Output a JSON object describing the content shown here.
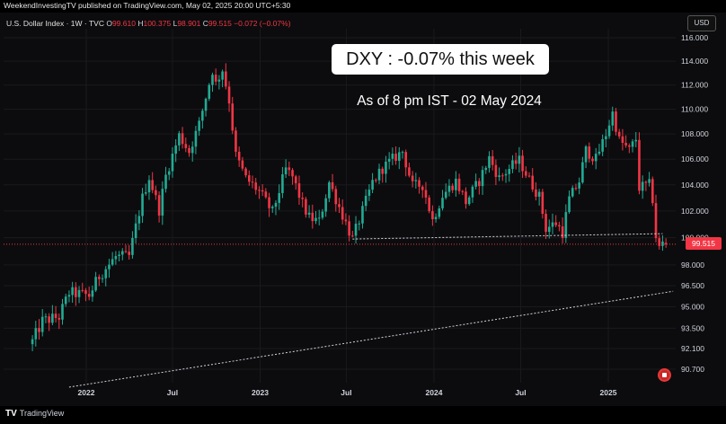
{
  "header": {
    "publisher": "WeekendInvestingTV published on TradingView.com, May 02, 2025 20:00 UTC+5:30"
  },
  "legend": {
    "symbol": "U.S. Dollar Index · 1W · TVC",
    "o_label": "O",
    "o": "99.610",
    "h_label": "H",
    "h": "100.375",
    "l_label": "L",
    "l": "98.901",
    "c_label": "C",
    "c": "99.515",
    "change": "−0.072 (−0.07%)"
  },
  "currency": "USD",
  "annotations": {
    "callout": "DXY : -0.07% this week",
    "subtitle": "As of 8 pm IST - 02 May 2024"
  },
  "price_tag": "99.515",
  "footer": {
    "logo": "TradingView"
  },
  "colors": {
    "up": "#22ab94",
    "down": "#f23645",
    "background": "#0c0c0e",
    "text": "#d1d4dc"
  },
  "chart_data": {
    "type": "candlestick",
    "interval": "1W",
    "y_ticks": [
      "116.000",
      "114.000",
      "112.000",
      "110.000",
      "108.000",
      "106.000",
      "104.000",
      "102.000",
      "100.000",
      "98.000",
      "96.500",
      "95.000",
      "93.500",
      "92.100",
      "90.700"
    ],
    "x_ticks": [
      "2022",
      "Jul",
      "2023",
      "Jul",
      "2024",
      "Jul",
      "2025"
    ],
    "ylim": [
      89.5,
      116.3
    ],
    "y_scale": "log",
    "last_price": 99.515,
    "support_line": {
      "from": [
        "2023-07-14",
        99.9
      ],
      "to": [
        "2025-04-25",
        100.3
      ]
    },
    "trend_line": {
      "from": [
        "2021-11-26",
        89.5
      ],
      "to": [
        "2025-05-02",
        96.1
      ]
    },
    "close_series": [
      {
        "date": "2021-09-10",
        "close": 92.6
      },
      {
        "date": "2021-10-01",
        "close": 94.0
      },
      {
        "date": "2021-11-05",
        "close": 94.3
      },
      {
        "date": "2021-11-26",
        "close": 96.0
      },
      {
        "date": "2022-01-07",
        "close": 95.8
      },
      {
        "date": "2022-01-28",
        "close": 97.2
      },
      {
        "date": "2022-03-04",
        "close": 98.6
      },
      {
        "date": "2022-04-01",
        "close": 98.6
      },
      {
        "date": "2022-04-29",
        "close": 103.0
      },
      {
        "date": "2022-05-13",
        "close": 104.6
      },
      {
        "date": "2022-06-03",
        "close": 102.1
      },
      {
        "date": "2022-06-17",
        "close": 104.7
      },
      {
        "date": "2022-07-15",
        "close": 107.9
      },
      {
        "date": "2022-08-05",
        "close": 106.6
      },
      {
        "date": "2022-08-26",
        "close": 108.8
      },
      {
        "date": "2022-09-23",
        "close": 113.2
      },
      {
        "date": "2022-09-30",
        "close": 112.1
      },
      {
        "date": "2022-10-14",
        "close": 113.3
      },
      {
        "date": "2022-10-28",
        "close": 110.7
      },
      {
        "date": "2022-11-11",
        "close": 106.3
      },
      {
        "date": "2022-12-02",
        "close": 104.5
      },
      {
        "date": "2022-12-30",
        "close": 103.5
      },
      {
        "date": "2023-01-27",
        "close": 101.9
      },
      {
        "date": "2023-02-24",
        "close": 105.2
      },
      {
        "date": "2023-03-10",
        "close": 104.6
      },
      {
        "date": "2023-03-31",
        "close": 102.5
      },
      {
        "date": "2023-04-14",
        "close": 101.5
      },
      {
        "date": "2023-05-05",
        "close": 101.2
      },
      {
        "date": "2023-05-26",
        "close": 104.2
      },
      {
        "date": "2023-06-16",
        "close": 102.3
      },
      {
        "date": "2023-07-14",
        "close": 99.9
      },
      {
        "date": "2023-08-04",
        "close": 102.0
      },
      {
        "date": "2023-08-25",
        "close": 104.2
      },
      {
        "date": "2023-09-15",
        "close": 105.3
      },
      {
        "date": "2023-10-06",
        "close": 106.0
      },
      {
        "date": "2023-10-27",
        "close": 106.6
      },
      {
        "date": "2023-11-17",
        "close": 103.9
      },
      {
        "date": "2023-12-08",
        "close": 104.0
      },
      {
        "date": "2023-12-29",
        "close": 101.3
      },
      {
        "date": "2024-01-19",
        "close": 103.2
      },
      {
        "date": "2024-02-16",
        "close": 104.3
      },
      {
        "date": "2024-03-08",
        "close": 102.7
      },
      {
        "date": "2024-04-05",
        "close": 104.3
      },
      {
        "date": "2024-04-26",
        "close": 106.1
      },
      {
        "date": "2024-05-17",
        "close": 104.5
      },
      {
        "date": "2024-06-14",
        "close": 105.5
      },
      {
        "date": "2024-06-28",
        "close": 105.9
      },
      {
        "date": "2024-07-19",
        "close": 104.4
      },
      {
        "date": "2024-08-09",
        "close": 103.1
      },
      {
        "date": "2024-08-23",
        "close": 100.7
      },
      {
        "date": "2024-09-13",
        "close": 101.1
      },
      {
        "date": "2024-09-27",
        "close": 100.4
      },
      {
        "date": "2024-10-11",
        "close": 102.9
      },
      {
        "date": "2024-11-01",
        "close": 104.3
      },
      {
        "date": "2024-11-15",
        "close": 106.7
      },
      {
        "date": "2024-12-06",
        "close": 106.0
      },
      {
        "date": "2024-12-27",
        "close": 108.0
      },
      {
        "date": "2025-01-10",
        "close": 109.7
      },
      {
        "date": "2025-01-24",
        "close": 107.5
      },
      {
        "date": "2025-02-14",
        "close": 106.7
      },
      {
        "date": "2025-02-28",
        "close": 107.6
      },
      {
        "date": "2025-03-07",
        "close": 103.8
      },
      {
        "date": "2025-03-28",
        "close": 104.0
      },
      {
        "date": "2025-04-04",
        "close": 102.9
      },
      {
        "date": "2025-04-11",
        "close": 100.1
      },
      {
        "date": "2025-04-18",
        "close": 99.2
      },
      {
        "date": "2025-04-25",
        "close": 99.6
      },
      {
        "date": "2025-05-02",
        "close": 99.515
      }
    ]
  }
}
